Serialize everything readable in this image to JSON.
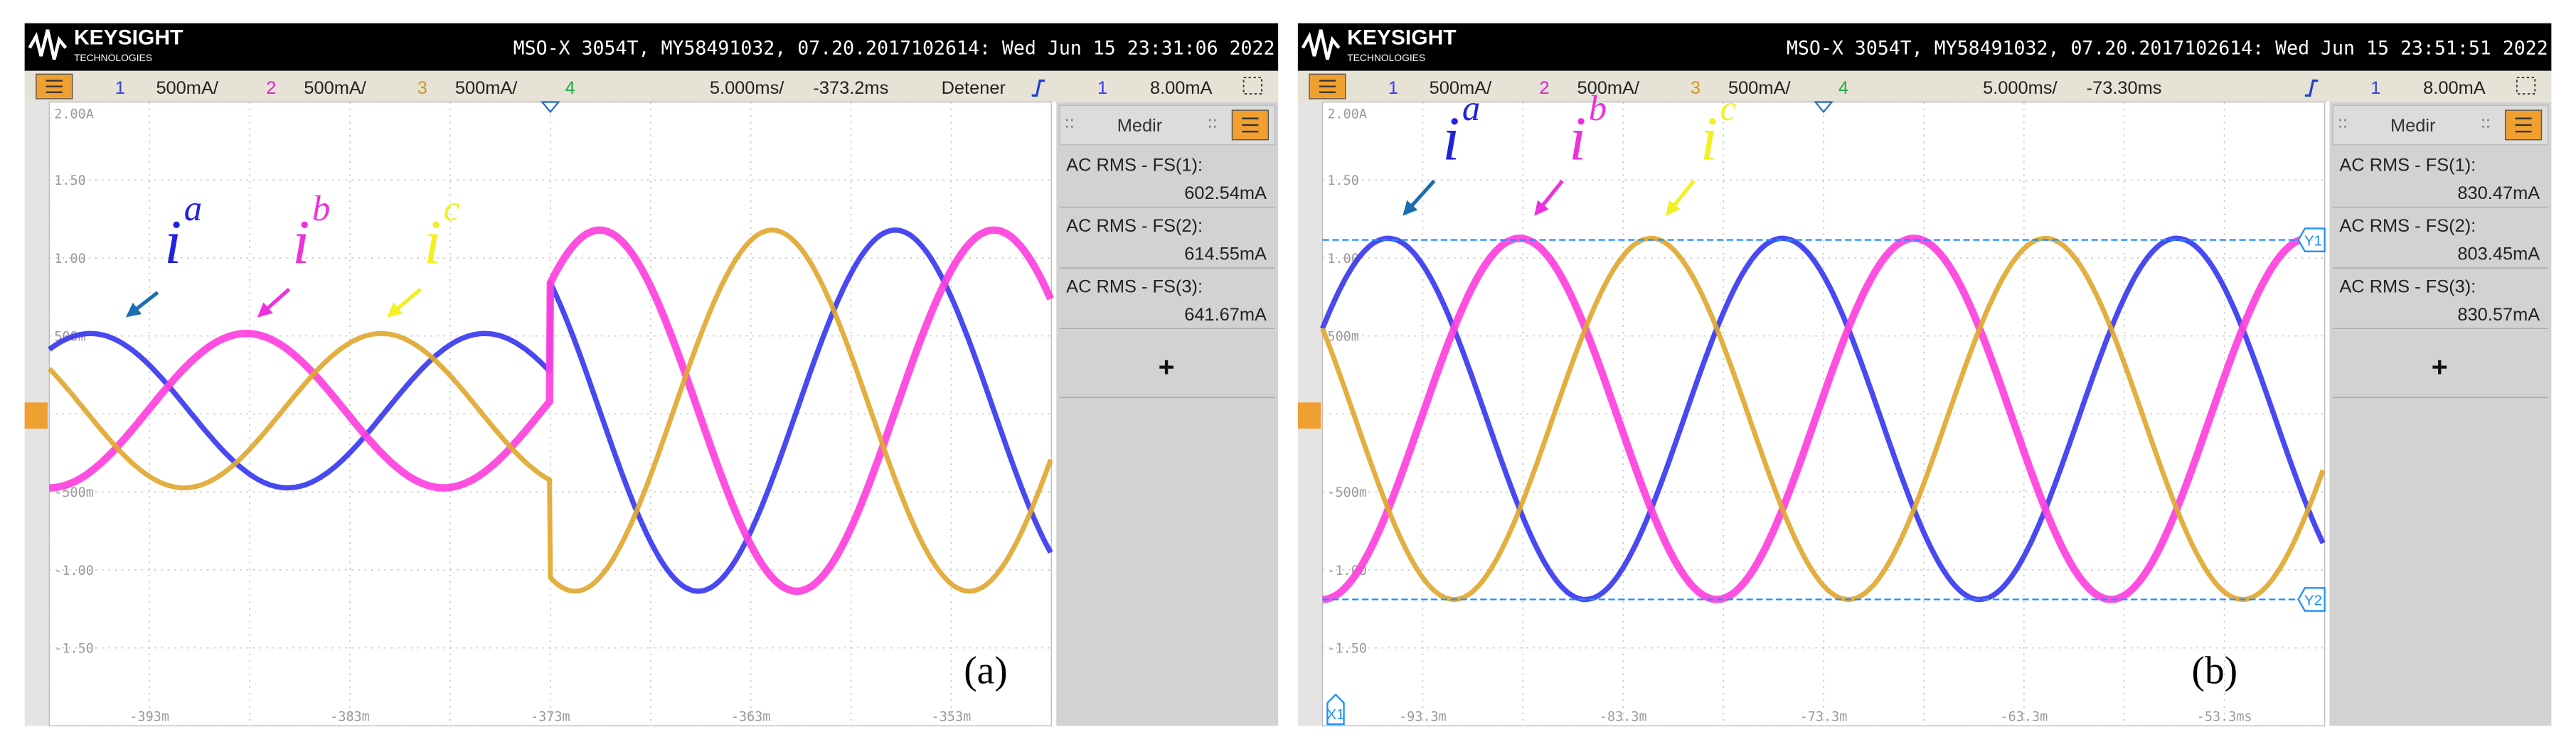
{
  "panels": [
    {
      "header": {
        "brand": "KEYSIGHT",
        "brand_sub": "TECHNOLOGIES",
        "info": "MSO-X 3054T, MY58491032, 07.20.2017102614: Wed Jun 15 23:31:06 2022"
      },
      "channel_bar": {
        "channels": [
          {
            "number": "1",
            "scale": "500mA/"
          },
          {
            "number": "2",
            "scale": "500mA/"
          },
          {
            "number": "3",
            "scale": "500mA/"
          },
          {
            "number": "4"
          }
        ],
        "timebase": "5.000ms/",
        "delay": "-373.2ms",
        "status": "Detener",
        "trigger_source": "1",
        "trigger_level": "8.00mA"
      },
      "y_labels": [
        "2.00A",
        "1.50",
        "1.00",
        "500m",
        "-500m",
        "-1.00",
        "-1.50"
      ],
      "x_labels": [
        "-393m",
        "-383m",
        "-373m",
        "-363m",
        "-353m"
      ],
      "measure": {
        "title": "Medir",
        "items": [
          {
            "label": "AC RMS - FS(1):",
            "value": "602.54mA"
          },
          {
            "label": "AC RMS - FS(2):",
            "value": "614.55mA"
          },
          {
            "label": "AC RMS - FS(3):",
            "value": "641.67mA"
          }
        ],
        "add": "+"
      },
      "annotations": [
        {
          "base": "i",
          "sup": "a"
        },
        {
          "base": "i",
          "sup": "b"
        },
        {
          "base": "i",
          "sup": "c"
        }
      ],
      "caption": "(a)"
    },
    {
      "header": {
        "brand": "KEYSIGHT",
        "brand_sub": "TECHNOLOGIES",
        "info": "MSO-X 3054T, MY58491032, 07.20.2017102614: Wed Jun 15 23:51:51 2022"
      },
      "channel_bar": {
        "channels": [
          {
            "number": "1",
            "scale": "500mA/"
          },
          {
            "number": "2",
            "scale": "500mA/"
          },
          {
            "number": "3",
            "scale": "500mA/"
          },
          {
            "number": "4"
          }
        ],
        "timebase": "5.000ms/",
        "delay": "-73.30ms",
        "trigger_source": "1",
        "trigger_level": "8.00mA"
      },
      "y_labels": [
        "2.00A",
        "1.50",
        "1.00",
        "500m",
        "-500m",
        "-1.00",
        "-1.50"
      ],
      "x_labels": [
        "-93.3m",
        "-83.3m",
        "-73.3m",
        "-63.3m",
        "-53.3ms"
      ],
      "measure": {
        "title": "Medir",
        "items": [
          {
            "label": "AC RMS - FS(1):",
            "value": "830.47mA"
          },
          {
            "label": "AC RMS - FS(2):",
            "value": "803.45mA"
          },
          {
            "label": "AC RMS - FS(3):",
            "value": "830.57mA"
          }
        ],
        "add": "+"
      },
      "annotations": [
        {
          "base": "i",
          "sup": "a"
        },
        {
          "base": "i",
          "sup": "b"
        },
        {
          "base": "i",
          "sup": "c"
        }
      ],
      "cursors": [
        "Y1",
        "Y2",
        "X1"
      ],
      "caption": "(b)"
    }
  ]
}
